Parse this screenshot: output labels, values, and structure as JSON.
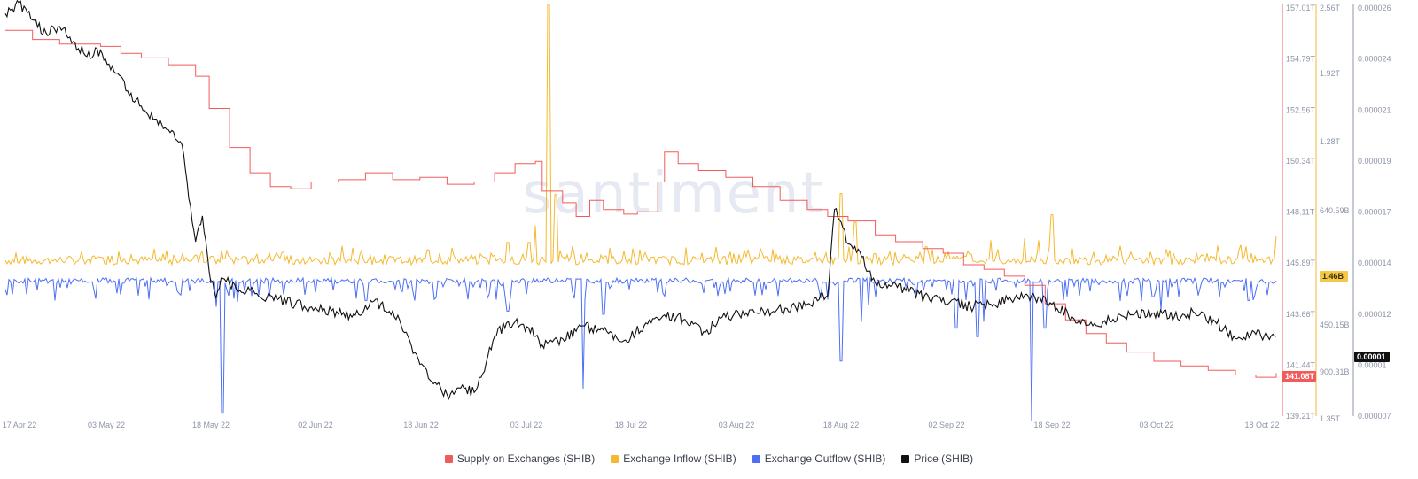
{
  "chart_data": {
    "type": "line",
    "watermark": "santiment",
    "x_range": [
      "2022-04-14",
      "2022-10-18"
    ],
    "x_ticks": [
      "17 Apr 22",
      "03 May 22",
      "18 May 22",
      "02 Jun 22",
      "18 Jun 22",
      "03 Jul 22",
      "18 Jul 22",
      "03 Aug 22",
      "18 Aug 22",
      "02 Sep 22",
      "18 Sep 22",
      "03 Oct 22",
      "18 Oct 22"
    ],
    "axes": {
      "supply": {
        "color": "#f25b5b",
        "ticks": [
          "157.01T",
          "154.79T",
          "152.56T",
          "150.34T",
          "148.11T",
          "145.89T",
          "143.66T",
          "141.44T",
          "139.21T"
        ],
        "range": [
          139.21,
          157.01
        ],
        "unit": "T"
      },
      "flow": {
        "color": "#f5b82e",
        "ticks": [
          "2.56T",
          "1.92T",
          "1.28T",
          "640.59B",
          "1.46B",
          "450.15B",
          "900.31B",
          "1.35T"
        ]
      },
      "price": {
        "color": "#8e95a8",
        "ticks": [
          "0.000026",
          "0.000024",
          "0.000021",
          "0.000019",
          "0.000017",
          "0.000014",
          "0.000012",
          "0.00001",
          "0.000007"
        ],
        "range": [
          7e-06,
          2.6e-05
        ]
      }
    },
    "badges": {
      "supply_last": "141.08T",
      "flow_last": "1.46B",
      "price_last": "0.00001"
    },
    "series": [
      {
        "name": "Supply on Exchanges (SHIB)",
        "color": "#f25b5b",
        "axis": "supply",
        "points": [
          [
            "2022-04-14",
            156.0
          ],
          [
            "2022-04-18",
            155.6
          ],
          [
            "2022-04-22",
            155.4
          ],
          [
            "2022-04-28",
            155.3
          ],
          [
            "2022-05-01",
            155.0
          ],
          [
            "2022-05-04",
            154.8
          ],
          [
            "2022-05-08",
            154.5
          ],
          [
            "2022-05-12",
            154.0
          ],
          [
            "2022-05-14",
            152.6
          ],
          [
            "2022-05-17",
            150.9
          ],
          [
            "2022-05-20",
            149.8
          ],
          [
            "2022-05-23",
            149.2
          ],
          [
            "2022-05-26",
            149.1
          ],
          [
            "2022-05-29",
            149.4
          ],
          [
            "2022-06-02",
            149.5
          ],
          [
            "2022-06-06",
            149.8
          ],
          [
            "2022-06-10",
            149.5
          ],
          [
            "2022-06-14",
            149.6
          ],
          [
            "2022-06-18",
            149.3
          ],
          [
            "2022-06-22",
            149.4
          ],
          [
            "2022-06-25",
            149.8
          ],
          [
            "2022-06-28",
            150.2
          ],
          [
            "2022-07-01",
            150.3
          ],
          [
            "2022-07-02",
            149.0
          ],
          [
            "2022-07-05",
            148.5
          ],
          [
            "2022-07-07",
            147.9
          ],
          [
            "2022-07-09",
            148.6
          ],
          [
            "2022-07-11",
            148.2
          ],
          [
            "2022-07-14",
            148.0
          ],
          [
            "2022-07-16",
            148.1
          ],
          [
            "2022-07-19",
            149.4
          ],
          [
            "2022-07-20",
            150.7
          ],
          [
            "2022-07-22",
            150.2
          ],
          [
            "2022-07-25",
            149.9
          ],
          [
            "2022-07-29",
            149.6
          ],
          [
            "2022-08-02",
            149.2
          ],
          [
            "2022-08-06",
            148.6
          ],
          [
            "2022-08-10",
            148.2
          ],
          [
            "2022-08-13",
            147.9
          ],
          [
            "2022-08-16",
            147.7
          ],
          [
            "2022-08-20",
            147.1
          ],
          [
            "2022-08-23",
            146.8
          ],
          [
            "2022-08-27",
            146.5
          ],
          [
            "2022-08-30",
            146.3
          ],
          [
            "2022-09-02",
            145.8
          ],
          [
            "2022-09-05",
            145.6
          ],
          [
            "2022-09-08",
            145.3
          ],
          [
            "2022-09-11",
            144.9
          ],
          [
            "2022-09-14",
            144.1
          ],
          [
            "2022-09-17",
            143.4
          ],
          [
            "2022-09-20",
            142.8
          ],
          [
            "2022-09-23",
            142.4
          ],
          [
            "2022-09-26",
            142.0
          ],
          [
            "2022-09-30",
            141.6
          ],
          [
            "2022-10-04",
            141.4
          ],
          [
            "2022-10-08",
            141.2
          ],
          [
            "2022-10-12",
            141.0
          ],
          [
            "2022-10-15",
            140.9
          ],
          [
            "2022-10-18",
            141.08
          ]
        ]
      },
      {
        "name": "Exchange Inflow (SHIB)",
        "color": "#f5b82e",
        "axis": "flow",
        "base": 0.0014,
        "spikes": [
          [
            "2022-04-23",
            0.08
          ],
          [
            "2022-05-09",
            0.11
          ],
          [
            "2022-05-12",
            0.14
          ],
          [
            "2022-05-14",
            0.08
          ],
          [
            "2022-05-17",
            0.12
          ],
          [
            "2022-05-25",
            0.09
          ],
          [
            "2022-06-02",
            0.12
          ],
          [
            "2022-06-14",
            0.09
          ],
          [
            "2022-06-19",
            0.14
          ],
          [
            "2022-06-27",
            0.26
          ],
          [
            "2022-06-30",
            0.26
          ],
          [
            "2022-07-01",
            0.42
          ],
          [
            "2022-07-03",
            2.5
          ],
          [
            "2022-07-04",
            0.71
          ],
          [
            "2022-07-18",
            0.12
          ],
          [
            "2022-07-25",
            0.11
          ],
          [
            "2022-08-03",
            0.12
          ],
          [
            "2022-08-15",
            0.72
          ],
          [
            "2022-08-17",
            0.45
          ],
          [
            "2022-08-25",
            0.12
          ],
          [
            "2022-09-03",
            0.15
          ],
          [
            "2022-09-06",
            0.28
          ],
          [
            "2022-09-11",
            0.3
          ],
          [
            "2022-09-13",
            0.28
          ],
          [
            "2022-09-15",
            0.52
          ],
          [
            "2022-09-25",
            0.14
          ],
          [
            "2022-10-02",
            0.12
          ],
          [
            "2022-10-18",
            0.32
          ]
        ]
      },
      {
        "name": "Exchange Outflow (SHIB)",
        "color": "#4c6ef5",
        "axis": "flow",
        "base": 0.0012,
        "spikes": [
          [
            "2022-04-14",
            0.12
          ],
          [
            "2022-05-15",
            0.28
          ],
          [
            "2022-05-16",
            1.28
          ],
          [
            "2022-06-06",
            0.22
          ],
          [
            "2022-06-24",
            0.16
          ],
          [
            "2022-06-27",
            0.32
          ],
          [
            "2022-07-08",
            1.05
          ],
          [
            "2022-07-11",
            0.35
          ],
          [
            "2022-08-15",
            0.79
          ],
          [
            "2022-08-18",
            0.42
          ],
          [
            "2022-08-19",
            0.26
          ],
          [
            "2022-09-01",
            0.48
          ],
          [
            "2022-09-04",
            0.56
          ],
          [
            "2022-09-05",
            0.42
          ],
          [
            "2022-09-12",
            1.35
          ],
          [
            "2022-09-14",
            0.48
          ],
          [
            "2022-10-01",
            0.31
          ],
          [
            "2022-10-14",
            0.22
          ]
        ]
      },
      {
        "name": "Price (SHIB)",
        "color": "#111111",
        "axis": "price",
        "points": [
          [
            "2022-04-14",
            2.57e-05
          ],
          [
            "2022-04-16",
            2.62e-05
          ],
          [
            "2022-04-18",
            2.54e-05
          ],
          [
            "2022-04-20",
            2.48e-05
          ],
          [
            "2022-04-22",
            2.51e-05
          ],
          [
            "2022-04-24",
            2.44e-05
          ],
          [
            "2022-04-26",
            2.37e-05
          ],
          [
            "2022-04-28",
            2.4e-05
          ],
          [
            "2022-04-30",
            2.3e-05
          ],
          [
            "2022-05-02",
            2.21e-05
          ],
          [
            "2022-05-04",
            2.14e-05
          ],
          [
            "2022-05-06",
            2.08e-05
          ],
          [
            "2022-05-08",
            2.03e-05
          ],
          [
            "2022-05-10",
            1.96e-05
          ],
          [
            "2022-05-11",
            1.71e-05
          ],
          [
            "2022-05-12",
            1.51e-05
          ],
          [
            "2022-05-13",
            1.63e-05
          ],
          [
            "2022-05-14",
            1.37e-05
          ],
          [
            "2022-05-15",
            1.25e-05
          ],
          [
            "2022-05-16",
            1.34e-05
          ],
          [
            "2022-05-18",
            1.29e-05
          ],
          [
            "2022-05-21",
            1.27e-05
          ],
          [
            "2022-05-24",
            1.24e-05
          ],
          [
            "2022-05-28",
            1.21e-05
          ],
          [
            "2022-06-01",
            1.19e-05
          ],
          [
            "2022-06-04",
            1.16e-05
          ],
          [
            "2022-06-07",
            1.23e-05
          ],
          [
            "2022-06-10",
            1.19e-05
          ],
          [
            "2022-06-12",
            1.09e-05
          ],
          [
            "2022-06-14",
            9.4e-06
          ],
          [
            "2022-06-16",
            8.5e-06
          ],
          [
            "2022-06-18",
            8e-06
          ],
          [
            "2022-06-20",
            8.3e-06
          ],
          [
            "2022-06-22",
            8.1e-06
          ],
          [
            "2022-06-23",
            8.8e-06
          ],
          [
            "2022-06-25",
            1.07e-05
          ],
          [
            "2022-06-27",
            1.14e-05
          ],
          [
            "2022-06-30",
            1.11e-05
          ],
          [
            "2022-07-02",
            1.03e-05
          ],
          [
            "2022-07-05",
            1.06e-05
          ],
          [
            "2022-07-08",
            1.12e-05
          ],
          [
            "2022-07-11",
            1.1e-05
          ],
          [
            "2022-07-14",
            1.05e-05
          ],
          [
            "2022-07-17",
            1.12e-05
          ],
          [
            "2022-07-20",
            1.17e-05
          ],
          [
            "2022-07-23",
            1.15e-05
          ],
          [
            "2022-07-26",
            1.09e-05
          ],
          [
            "2022-07-29",
            1.16e-05
          ],
          [
            "2022-08-01",
            1.18e-05
          ],
          [
            "2022-08-04",
            1.19e-05
          ],
          [
            "2022-08-07",
            1.2e-05
          ],
          [
            "2022-08-10",
            1.22e-05
          ],
          [
            "2022-08-13",
            1.26e-05
          ],
          [
            "2022-08-14",
            1.66e-05
          ],
          [
            "2022-08-15",
            1.6e-05
          ],
          [
            "2022-08-16",
            1.5e-05
          ],
          [
            "2022-08-18",
            1.44e-05
          ],
          [
            "2022-08-20",
            1.32e-05
          ],
          [
            "2022-08-22",
            1.31e-05
          ],
          [
            "2022-08-25",
            1.28e-05
          ],
          [
            "2022-08-28",
            1.24e-05
          ],
          [
            "2022-08-31",
            1.23e-05
          ],
          [
            "2022-09-03",
            1.21e-05
          ],
          [
            "2022-09-06",
            1.22e-05
          ],
          [
            "2022-09-09",
            1.24e-05
          ],
          [
            "2022-09-12",
            1.26e-05
          ],
          [
            "2022-09-15",
            1.22e-05
          ],
          [
            "2022-09-18",
            1.16e-05
          ],
          [
            "2022-09-21",
            1.12e-05
          ],
          [
            "2022-09-24",
            1.15e-05
          ],
          [
            "2022-09-27",
            1.17e-05
          ],
          [
            "2022-09-30",
            1.18e-05
          ],
          [
            "2022-10-03",
            1.16e-05
          ],
          [
            "2022-10-06",
            1.18e-05
          ],
          [
            "2022-10-09",
            1.14e-05
          ],
          [
            "2022-10-12",
            1.06e-05
          ],
          [
            "2022-10-15",
            1.08e-05
          ],
          [
            "2022-10-18",
            1.07e-05
          ]
        ]
      }
    ],
    "legend": [
      {
        "label": "Supply on Exchanges (SHIB)",
        "color": "#f25b5b"
      },
      {
        "label": "Exchange Inflow (SHIB)",
        "color": "#f5b82e"
      },
      {
        "label": "Exchange Outflow (SHIB)",
        "color": "#4c6ef5"
      },
      {
        "label": "Price (SHIB)",
        "color": "#111111"
      }
    ]
  }
}
